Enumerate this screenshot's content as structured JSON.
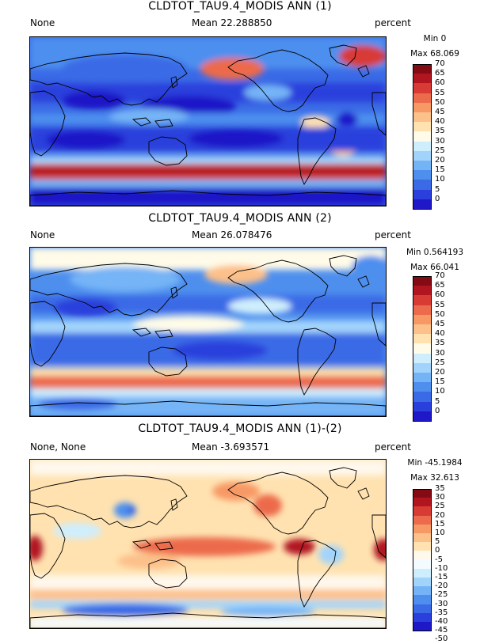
{
  "colors": {
    "palette_abs": [
      "#1f18c8",
      "#2a3fdc",
      "#3a6ae6",
      "#4e8fee",
      "#74b4f6",
      "#a2d4fb",
      "#cfeefd",
      "#fffbe8",
      "#ffe2b0",
      "#fcc08a",
      "#f79965",
      "#ec6b4c",
      "#d83a34",
      "#b11620",
      "#840a14"
    ],
    "palette_diff": [
      "#1f18c8",
      "#2a3fdc",
      "#3a6ae6",
      "#4e8fee",
      "#74b4f6",
      "#a2d4fb",
      "#cfeefd",
      "#f4fbff",
      "#fff8ec",
      "#ffe2b0",
      "#fcc08a",
      "#f79965",
      "#ec6b4c",
      "#d83a34",
      "#b11620",
      "#840a14"
    ]
  },
  "panels": [
    {
      "title": "CLDTOT_TAU9.4_MODIS ANN (1)",
      "left_label": "None",
      "mean_label": "Mean 22.288850",
      "units_label": "percent",
      "min_label": "Min 0",
      "max_label": "Max 68.069"
    },
    {
      "title": "CLDTOT_TAU9.4_MODIS ANN (2)",
      "left_label": "None",
      "mean_label": "Mean 26.078476",
      "units_label": "percent",
      "min_label": "Min 0.564193",
      "max_label": "Max 66.041"
    },
    {
      "title": "CLDTOT_TAU9.4_MODIS ANN (1)-(2)",
      "left_label": "None, None",
      "mean_label": "Mean -3.693571",
      "units_label": "percent",
      "min_label": "Min -45.1984",
      "max_label": "Max 32.613"
    }
  ],
  "chart_data": [
    {
      "type": "heatmap",
      "title": "CLDTOT_TAU9.4_MODIS ANN (1)",
      "units": "percent",
      "mean": 22.28885,
      "min": 0,
      "max": 68.069,
      "colorbar_levels": [
        "0",
        "5",
        "10",
        "15",
        "20",
        "25",
        "30",
        "35",
        "40",
        "45",
        "50",
        "55",
        "60",
        "65",
        "70"
      ]
    },
    {
      "type": "heatmap",
      "title": "CLDTOT_TAU9.4_MODIS ANN (2)",
      "units": "percent",
      "mean": 26.078476,
      "min": 0.564193,
      "max": 66.041,
      "colorbar_levels": [
        "0",
        "5",
        "10",
        "15",
        "20",
        "25",
        "30",
        "35",
        "40",
        "45",
        "50",
        "55",
        "60",
        "65",
        "70"
      ]
    },
    {
      "type": "heatmap",
      "title": "CLDTOT_TAU9.4_MODIS ANN (1)-(2)",
      "units": "percent",
      "mean": -3.693571,
      "min": -45.1984,
      "max": 32.613,
      "colorbar_levels": [
        "-50",
        "-45",
        "-40",
        "-35",
        "-30",
        "-25",
        "-20",
        "-15",
        "-10",
        "-5",
        "0",
        "5",
        "10",
        "15",
        "20",
        "25",
        "30",
        "35"
      ]
    }
  ]
}
